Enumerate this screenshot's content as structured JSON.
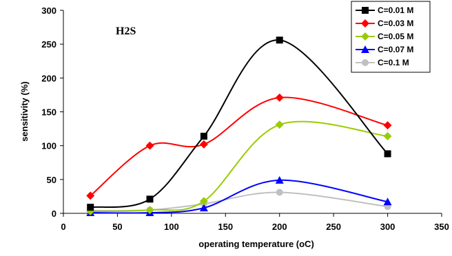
{
  "chart_data": {
    "type": "line",
    "smooth": true,
    "annotation": "H2S",
    "xlabel": "operating temperature (oC)",
    "ylabel": "sensitivity  (%)",
    "xlim": [
      0,
      350
    ],
    "ylim": [
      0,
      300
    ],
    "x_ticks": [
      0,
      50,
      100,
      150,
      200,
      250,
      300,
      350
    ],
    "y_ticks": [
      0,
      50,
      100,
      150,
      200,
      250,
      300
    ],
    "grid": false,
    "legend_position": "top-right",
    "x": [
      25,
      80,
      130,
      200,
      300
    ],
    "series": [
      {
        "name": "C=0.01 M",
        "values": [
          9,
          21,
          114,
          256,
          88
        ],
        "color": "#000000",
        "marker": "square"
      },
      {
        "name": "C=0.03 M",
        "values": [
          26,
          100,
          102,
          171,
          130
        ],
        "color": "#ff0000",
        "marker": "diamond"
      },
      {
        "name": "C=0.05 M",
        "values": [
          3,
          5,
          18,
          131,
          114
        ],
        "color": "#99cc00",
        "marker": "diamond"
      },
      {
        "name": "C=0.07 M",
        "values": [
          1,
          1,
          8,
          49,
          17
        ],
        "color": "#0000ff",
        "marker": "triangle"
      },
      {
        "name": "C=0.1 M",
        "values": [
          4,
          5,
          14,
          31,
          10
        ],
        "color": "#c0c0c0",
        "marker": "circle"
      }
    ]
  }
}
